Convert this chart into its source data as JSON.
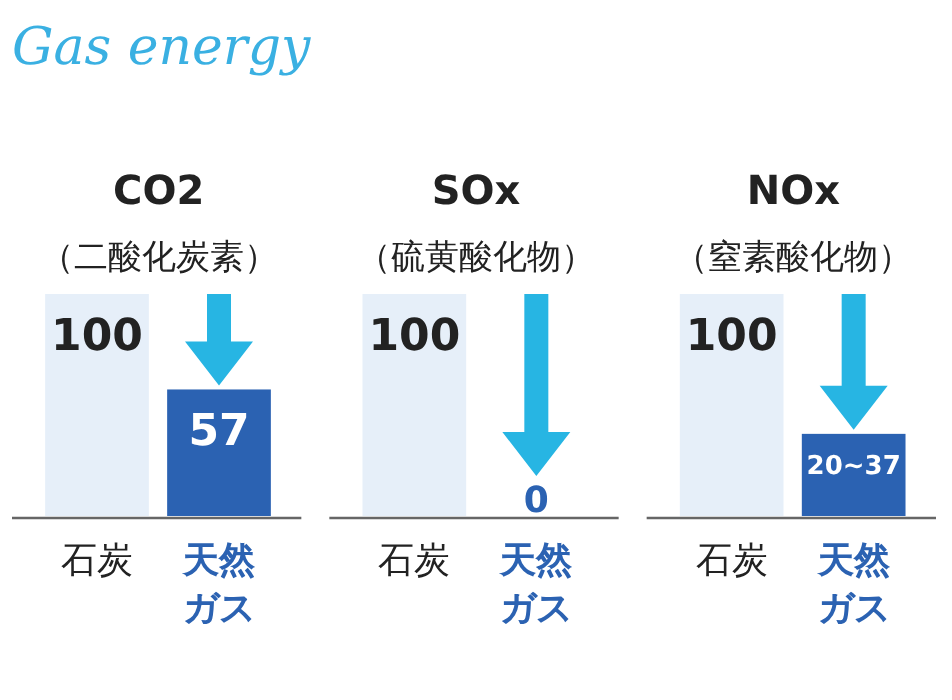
{
  "chart_data": [
    {
      "type": "bar",
      "ylim": [
        0,
        100
      ],
      "title": "CO2",
      "subtitle": "（二酸化炭素）",
      "categories": [
        "石炭",
        "天然ガス"
      ],
      "values": [
        100,
        57
      ],
      "colors": [
        "#e6eff9",
        "#2b62b2"
      ],
      "value_labels": [
        "100",
        "57"
      ],
      "annotations": [
        "Gas energy"
      ]
    },
    {
      "type": "bar",
      "ylim": [
        0,
        100
      ],
      "title": "SOx",
      "subtitle": "（硫黄酸化物）",
      "categories": [
        "石炭",
        "天然ガス"
      ],
      "values": [
        100,
        0
      ],
      "colors": [
        "#e6eff9",
        "#2b62b2"
      ],
      "value_labels": [
        "100",
        "0"
      ]
    },
    {
      "type": "bar",
      "ylim": [
        0,
        100
      ],
      "title": "NOx",
      "subtitle": "（窒素酸化物）",
      "categories": [
        "石炭",
        "天然ガス"
      ],
      "values": [
        100,
        37
      ],
      "colors": [
        "#e6eff9",
        "#2b62b2"
      ],
      "value_labels": [
        "100",
        "20~37"
      ]
    }
  ]
}
